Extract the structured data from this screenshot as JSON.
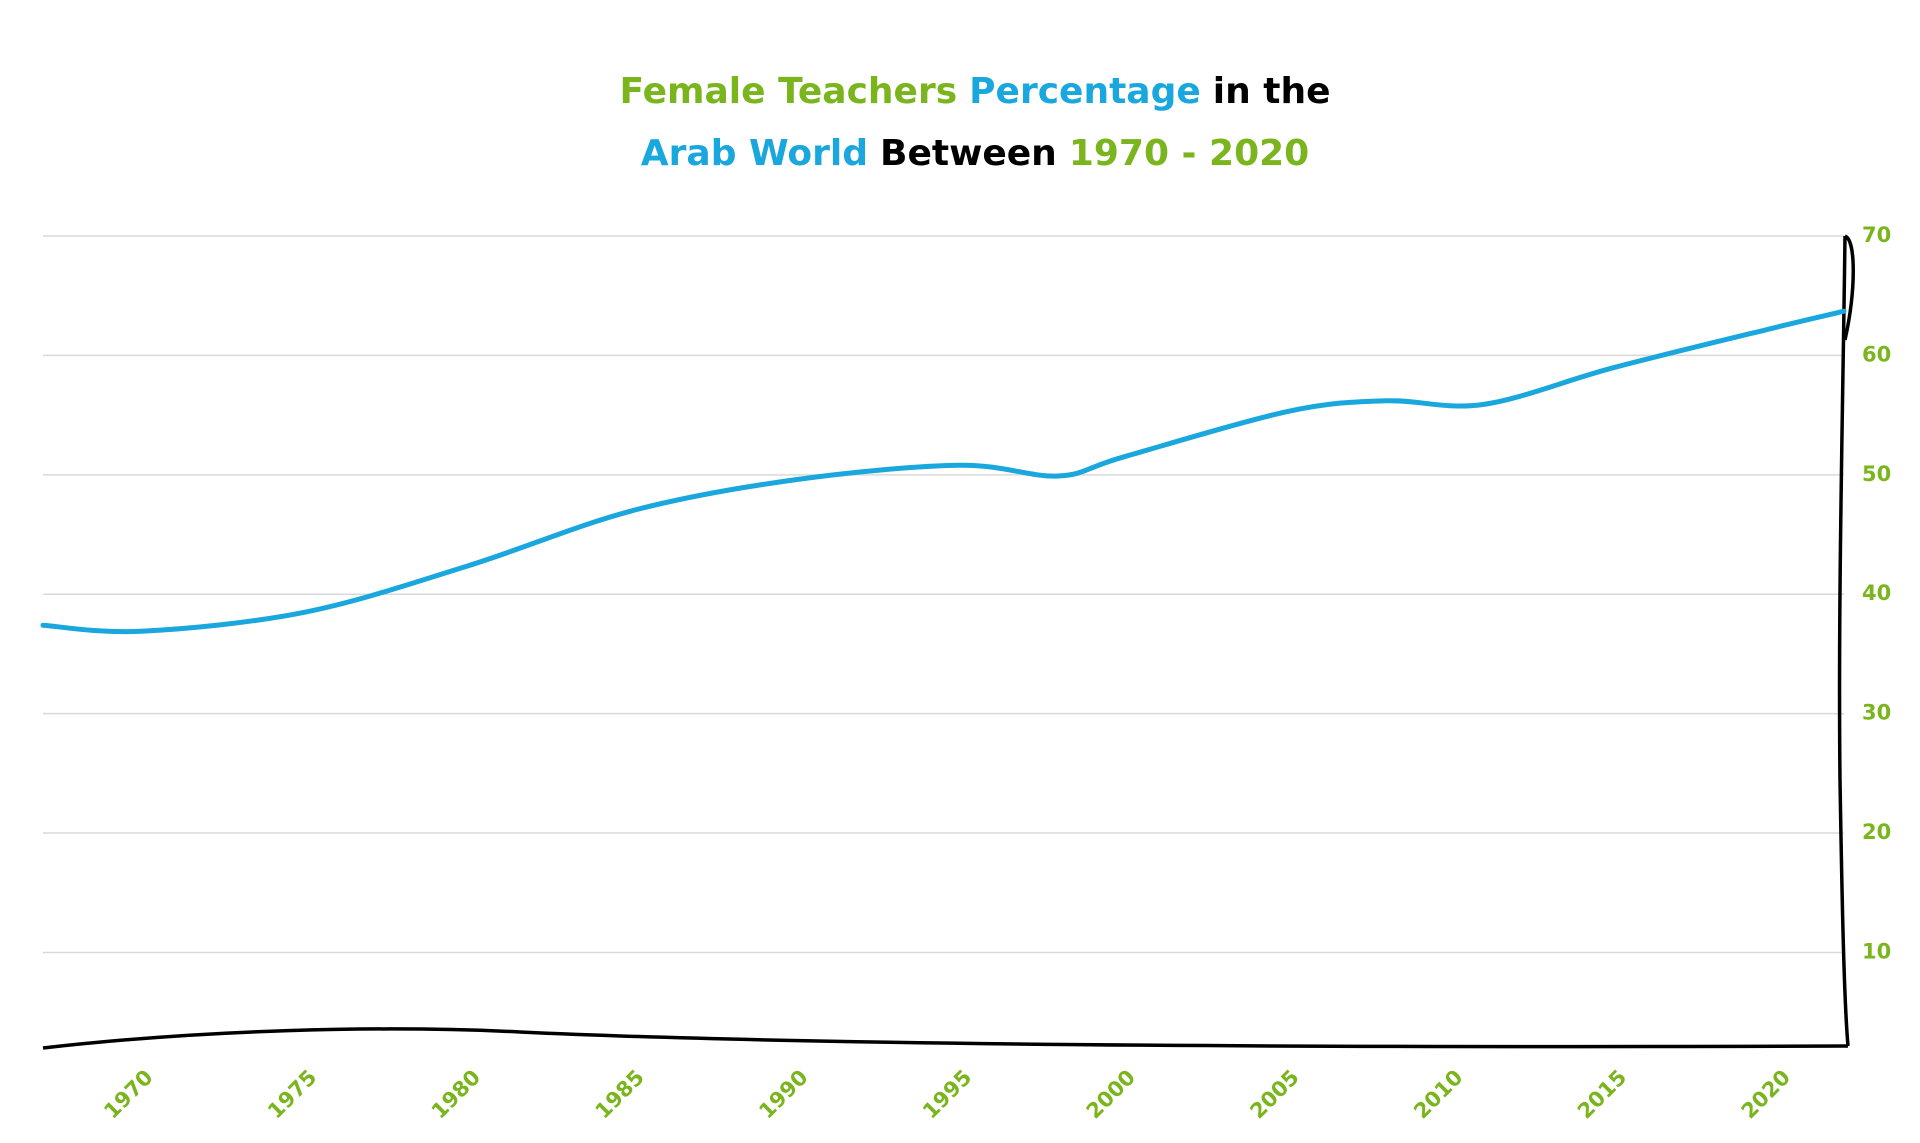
{
  "chart_data": {
    "type": "line",
    "title": [
      [
        {
          "text": "Female Teachers",
          "color": "#7ab51d"
        },
        {
          "text": "Percentage",
          "color": "#1aa7de"
        },
        {
          "text": "in the",
          "color": "#000000"
        }
      ],
      [
        {
          "text": "Arab World",
          "color": "#1aa7de"
        },
        {
          "text": "Between",
          "color": "#000000"
        },
        {
          "text": "1970 - 2020",
          "color": "#7ab51d"
        }
      ]
    ],
    "x": [
      1967,
      1970,
      1975,
      1980,
      1985,
      1990,
      1995,
      1998,
      2000,
      2005,
      2008,
      2011,
      2015,
      2020,
      2022
    ],
    "series": [
      {
        "name": "Female teachers (%)",
        "color": "#1aa7de",
        "values": [
          37.4,
          36.9,
          38.5,
          42.4,
          47.0,
          49.6,
          50.8,
          49.9,
          51.5,
          55.3,
          56.2,
          55.9,
          59.0,
          62.4,
          63.7
        ]
      }
    ],
    "xlim": [
      1967,
      2022
    ],
    "xticks": [
      1970,
      1975,
      1980,
      1985,
      1990,
      1995,
      2000,
      2005,
      2010,
      2015,
      2020
    ],
    "ylim": [
      2,
      70
    ],
    "yticks": [
      10,
      20,
      30,
      40,
      50,
      60,
      70
    ],
    "grid": true,
    "tick_color": "#7ab51d"
  }
}
